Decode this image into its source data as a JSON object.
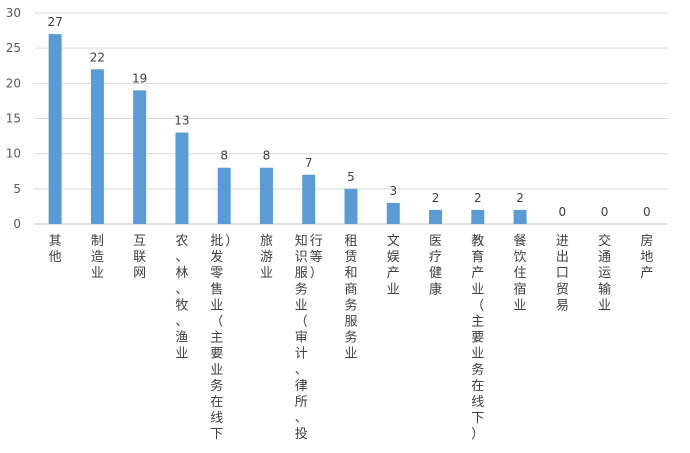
{
  "chart_data": {
    "type": "bar",
    "categories": [
      "其他",
      "制造业",
      "互联网",
      "农、林、牧、渔业",
      "批发零售业（主要业务在线下）",
      "旅游业",
      "知识服务业（审计、律所、投行等）",
      "租赁和商务服务业",
      "文娱产业",
      "医疗健康",
      "教育产业（主要业务在线下）",
      "餐饮住宿业",
      "进出口贸易",
      "交通运输业",
      "房地产"
    ],
    "values": [
      27,
      22,
      19,
      13,
      8,
      8,
      7,
      5,
      3,
      2,
      2,
      2,
      0,
      0,
      0
    ],
    "data_labels": [
      "27",
      "22",
      "19",
      "13",
      "8",
      "8",
      "7",
      "5",
      "3",
      "2",
      "2",
      "2",
      "0",
      "0",
      "0"
    ],
    "y_ticks": [
      "0",
      "5",
      "10",
      "15",
      "20",
      "25",
      "30"
    ],
    "ylim": [
      0,
      30
    ],
    "grid": true,
    "legend": "none",
    "colors": {
      "bar": "#5b9bd5"
    }
  }
}
